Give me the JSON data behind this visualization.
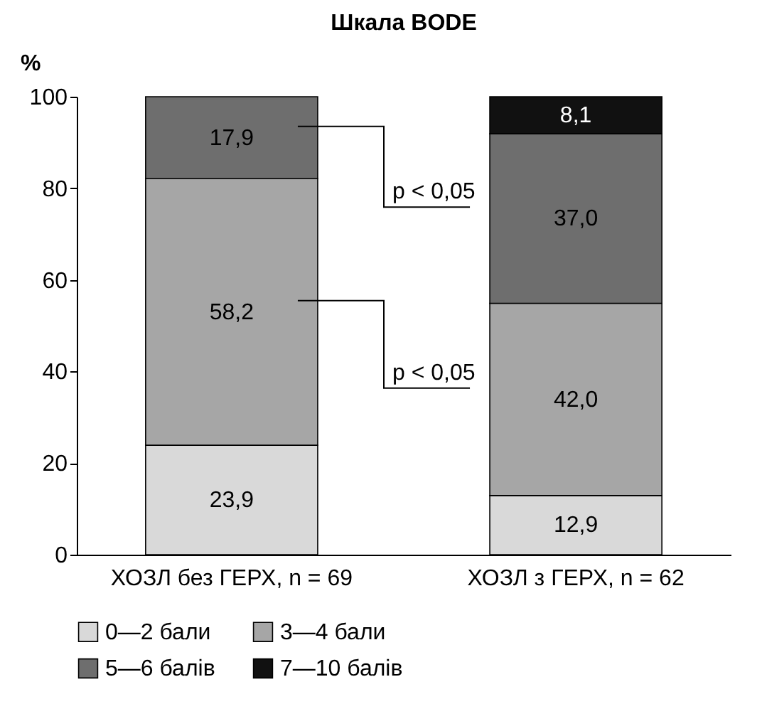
{
  "chart_data": {
    "type": "bar",
    "title": "Шкала BODE",
    "ylabel": "%",
    "stacked": true,
    "legend": "bottom",
    "grid": false,
    "categories": [
      "ХОЗЛ без ГЕРХ, n = 69",
      "ХОЗЛ з ГЕРХ, n = 62"
    ],
    "ylim": [
      0,
      100
    ],
    "yticks": [
      0,
      20,
      40,
      60,
      80,
      100
    ],
    "series": [
      {
        "name": "0—2 бали",
        "color": "#d9d9d9",
        "values": [
          23.9,
          12.9
        ],
        "value_labels": [
          "23,9",
          "12,9"
        ]
      },
      {
        "name": "3—4 бали",
        "color": "#a6a6a6",
        "values": [
          58.2,
          42.0
        ],
        "value_labels": [
          "58,2",
          "42,0"
        ]
      },
      {
        "name": "5—6 балів",
        "color": "#6e6e6e",
        "values": [
          17.9,
          37.0
        ],
        "value_labels": [
          "17,9",
          "37,0"
        ]
      },
      {
        "name": "7—10 балів",
        "color": "#111111",
        "values": [
          null,
          8.1
        ],
        "value_labels": [
          null,
          "8,1"
        ]
      }
    ],
    "annotations": [
      "p < 0,05",
      "p < 0,05"
    ]
  }
}
